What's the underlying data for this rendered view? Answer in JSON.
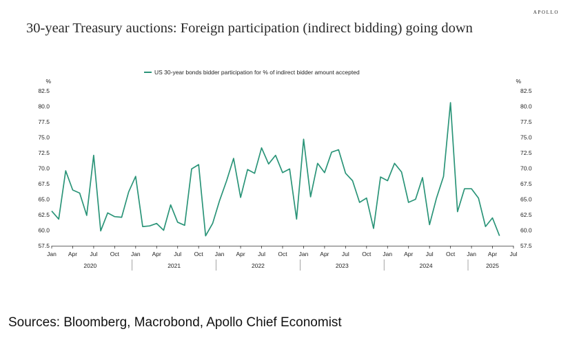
{
  "header": {
    "brand": "APOLLO",
    "title": "30-year Treasury auctions: Foreign participation (indirect bidding) going down"
  },
  "footer": {
    "sources": "Sources: Bloomberg, Macrobond, Apollo Chief Economist"
  },
  "chart_data": {
    "type": "line",
    "title": "30-year Treasury auctions: Foreign participation (indirect bidding) going down",
    "legend": "US 30-year bonds bidder participation for % of indirect bidder amount accepted",
    "legend_position": "top-center",
    "y_unit_left": "%",
    "y_unit_right": "%",
    "ylim": [
      57.5,
      82.5
    ],
    "yticks": [
      "57.5",
      "60.0",
      "62.5",
      "65.0",
      "67.5",
      "70.0",
      "72.5",
      "75.0",
      "77.5",
      "80.0",
      "82.5"
    ],
    "grid": false,
    "color": "#2a9478",
    "x_month_ticks": [
      "Jan",
      "Apr",
      "Jul",
      "Oct",
      "Jan",
      "Apr",
      "Jul",
      "Oct",
      "Jan",
      "Apr",
      "Jul",
      "Oct",
      "Jan",
      "Apr",
      "Jul",
      "Oct",
      "Jan",
      "Apr",
      "Jul",
      "Oct",
      "Jan",
      "Apr",
      "Jul"
    ],
    "x_year_labels": [
      "2020",
      "2021",
      "2022",
      "2023",
      "2024",
      "2025"
    ],
    "x_start": "2020-01",
    "series": [
      {
        "name": "US 30-year bonds bidder participation for % of indirect bidder amount accepted",
        "values": [
          63.1,
          61.8,
          69.6,
          66.5,
          66.0,
          62.4,
          72.1,
          59.9,
          62.8,
          62.2,
          62.1,
          66.2,
          68.7,
          60.6,
          60.7,
          61.1,
          60.0,
          64.1,
          61.3,
          60.8,
          69.9,
          70.6,
          59.1,
          61.1,
          64.8,
          68.0,
          71.6,
          65.3,
          69.8,
          69.2,
          73.3,
          70.7,
          72.1,
          69.3,
          69.9,
          61.8,
          74.7,
          65.4,
          70.8,
          69.3,
          72.6,
          73.0,
          69.2,
          68.0,
          64.5,
          65.2,
          60.3,
          68.6,
          68.0,
          70.8,
          69.4,
          64.5,
          65.0,
          68.5,
          60.9,
          65.2,
          68.7,
          80.6,
          63.0,
          66.7,
          66.7,
          65.2,
          60.6,
          62.0,
          59.1
        ]
      }
    ]
  }
}
